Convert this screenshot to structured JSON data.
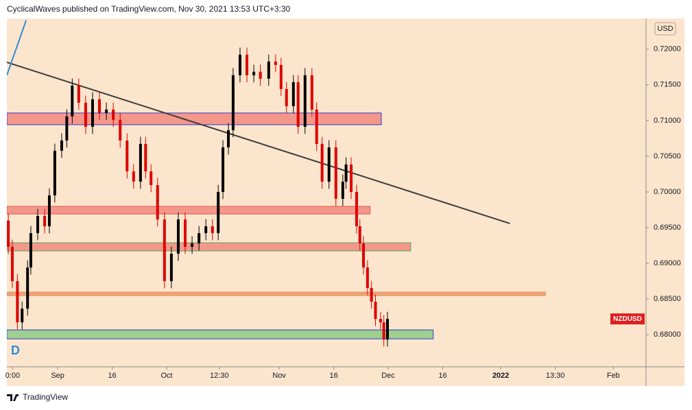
{
  "header": "CyclicalWaves published on TradingView.com, Nov 30, 2021 13:53 UTC+3:30",
  "footer": "TradingView",
  "chart_data": {
    "type": "candlestick",
    "currency": "USD",
    "symbol": "NZDUSD",
    "symbol_price": 0.68221,
    "interval_label": "D",
    "xlim": [
      -14,
      162
    ],
    "ylim": [
      0.6755,
      0.7243
    ],
    "xticks": [
      {
        "value": -12.4,
        "label": "0:00"
      },
      {
        "value": 0,
        "label": "Sep"
      },
      {
        "value": 15,
        "label": "16"
      },
      {
        "value": 30,
        "label": "Oct"
      },
      {
        "value": 44.5,
        "label": "12:30"
      },
      {
        "value": 61,
        "label": "Nov"
      },
      {
        "value": 76,
        "label": "16"
      },
      {
        "value": 91,
        "label": "Dec"
      },
      {
        "value": 106,
        "label": "16"
      },
      {
        "value": 122,
        "label": "2022"
      },
      {
        "value": 137,
        "label": "13:30"
      },
      {
        "value": 153,
        "label": "Feb"
      }
    ],
    "yticks": [
      {
        "value": 0.68,
        "label": "0.68000"
      },
      {
        "value": 0.685,
        "label": "0.68500"
      },
      {
        "value": 0.69,
        "label": "0.69000"
      },
      {
        "value": 0.695,
        "label": "0.69500"
      },
      {
        "value": 0.7,
        "label": "0.70000"
      },
      {
        "value": 0.705,
        "label": "0.70500"
      },
      {
        "value": 0.71,
        "label": "0.71000"
      },
      {
        "value": 0.715,
        "label": "0.71500"
      },
      {
        "value": 0.72,
        "label": "0.72000"
      }
    ],
    "up_color": "#000000",
    "down_color": "#e00000",
    "x": [
      -13.6,
      -12.5,
      -11.1,
      -9.8,
      -8.3,
      -7.4,
      -5.5,
      -3.6,
      -2.3,
      -0.8,
      1.1,
      2.5,
      4.0,
      5.8,
      7.7,
      9.6,
      11.5,
      13.4,
      15.3,
      17.2,
      19.1,
      20.9,
      22.8,
      24.2,
      25.7,
      27.5,
      29.4,
      31.3,
      33.2,
      35.1,
      37.0,
      38.9,
      40.8,
      42.6,
      44.2,
      45.5,
      47.0,
      48.3,
      50.2,
      52.1,
      54.0,
      55.8,
      58.1,
      60.0,
      61.5,
      63.0,
      64.9,
      66.2,
      68.1,
      70.0,
      71.3,
      72.8,
      74.7,
      76.6,
      78.5,
      79.4,
      80.8,
      82.3,
      83.2,
      84.2,
      85.3,
      86.4,
      87.5,
      88.9,
      89.8,
      90.8
    ],
    "open": [
      0.696,
      0.69231,
      0.6875,
      0.68173,
      0.68365,
      0.68942,
      0.69423,
      0.69663,
      0.69519,
      0.69952,
      0.70577,
      0.70721,
      0.71058,
      0.7149,
      0.7125,
      0.70913,
      0.71298,
      0.71106,
      0.71154,
      0.7101,
      0.70721,
      0.70288,
      0.70144,
      0.70673,
      0.70288,
      0.70096,
      0.69615,
      0.6875,
      0.69135,
      0.69615,
      0.69231,
      0.69279,
      0.69423,
      0.69519,
      0.69423,
      0.7,
      0.70625,
      0.70865,
      0.71635,
      0.71923,
      0.71635,
      0.71683,
      0.71587,
      0.71827,
      0.71779,
      0.71442,
      0.71202,
      0.71538,
      0.70913,
      0.71635,
      0.71154,
      0.70673,
      0.70144,
      0.70625,
      0.69904,
      0.70144,
      0.70385,
      0.7,
      0.69519,
      0.69279,
      0.68942,
      0.68654,
      0.68462,
      0.68221,
      0.68173,
      0.67933
    ],
    "high": [
      0.697,
      0.69331,
      0.6885,
      0.68465,
      0.69042,
      0.69523,
      0.69763,
      0.69763,
      0.70052,
      0.70677,
      0.70821,
      0.71158,
      0.7159,
      0.7159,
      0.7135,
      0.71398,
      0.71398,
      0.71254,
      0.71254,
      0.7111,
      0.70821,
      0.70388,
      0.70773,
      0.70773,
      0.70388,
      0.70196,
      0.69715,
      0.69235,
      0.69715,
      0.69715,
      0.69379,
      0.69523,
      0.69619,
      0.69619,
      0.701,
      0.70725,
      0.70965,
      0.71735,
      0.72023,
      0.72023,
      0.71783,
      0.71783,
      0.71927,
      0.71927,
      0.71879,
      0.71542,
      0.71638,
      0.71638,
      0.71735,
      0.71735,
      0.71254,
      0.70773,
      0.70725,
      0.70725,
      0.70244,
      0.70485,
      0.70485,
      0.701,
      0.69619,
      0.69379,
      0.69042,
      0.68754,
      0.68562,
      0.68321,
      0.68273,
      0.68321
    ],
    "low": [
      0.69131,
      0.6865,
      0.68073,
      0.68073,
      0.68265,
      0.68842,
      0.69323,
      0.69419,
      0.69419,
      0.69852,
      0.70477,
      0.70621,
      0.70958,
      0.7115,
      0.70813,
      0.70813,
      0.71006,
      0.71006,
      0.7091,
      0.70621,
      0.70188,
      0.70044,
      0.70044,
      0.70188,
      0.69996,
      0.69515,
      0.6865,
      0.6865,
      0.69035,
      0.69131,
      0.69131,
      0.69179,
      0.69323,
      0.69323,
      0.69323,
      0.699,
      0.70525,
      0.70765,
      0.71535,
      0.71535,
      0.71535,
      0.71487,
      0.71487,
      0.71679,
      0.71342,
      0.71102,
      0.71102,
      0.70813,
      0.70813,
      0.71054,
      0.70573,
      0.70044,
      0.70044,
      0.69804,
      0.69804,
      0.70044,
      0.699,
      0.69419,
      0.69179,
      0.68842,
      0.68554,
      0.68362,
      0.68121,
      0.68073,
      0.67833,
      0.67833
    ],
    "close": [
      0.69231,
      0.6875,
      0.68173,
      0.68365,
      0.68942,
      0.69423,
      0.69663,
      0.69519,
      0.69952,
      0.70577,
      0.70721,
      0.71058,
      0.7149,
      0.7125,
      0.70913,
      0.71298,
      0.71106,
      0.71154,
      0.7101,
      0.70721,
      0.70288,
      0.70144,
      0.70673,
      0.70288,
      0.70096,
      0.69615,
      0.6875,
      0.69135,
      0.69615,
      0.69231,
      0.69279,
      0.69423,
      0.69519,
      0.69423,
      0.7,
      0.70625,
      0.70865,
      0.71635,
      0.71923,
      0.71635,
      0.71683,
      0.71587,
      0.71827,
      0.71779,
      0.71442,
      0.71202,
      0.71538,
      0.70913,
      0.71635,
      0.71154,
      0.70673,
      0.70144,
      0.70625,
      0.69904,
      0.70144,
      0.70385,
      0.7,
      0.69519,
      0.69279,
      0.68942,
      0.68654,
      0.68462,
      0.68221,
      0.68173,
      0.67933,
      0.68221
    ],
    "zones": [
      {
        "x": [
          -14,
          89.1
        ],
        "y": [
          0.70942,
          0.71106
        ],
        "fill": "#f4978b",
        "stroke": "#2a3cc8"
      },
      {
        "x": [
          -14,
          86.0
        ],
        "y": [
          0.69692,
          0.69798
        ],
        "fill": "#f4978b",
        "stroke": "#e0524a"
      },
      {
        "x": [
          -14,
          97.2
        ],
        "y": [
          0.69173,
          0.69288
        ],
        "fill": "#f4978b",
        "stroke": "#4caf50"
      },
      {
        "x": [
          -14,
          134.3
        ],
        "y": [
          0.68548,
          0.68596
        ],
        "fill": "#f4a27a",
        "stroke": "#d4915c"
      },
      {
        "x": [
          -14,
          103.4
        ],
        "y": [
          0.67942,
          0.68067
        ],
        "fill": "#9fcf8f",
        "stroke": "#2a3cc8"
      }
    ],
    "lines": [
      {
        "x": [
          -14,
          124.5
        ],
        "y": [
          0.71817,
          0.69558
        ],
        "color": "#3c3c3c"
      },
      {
        "x": [
          -14,
          -8.7
        ],
        "y": [
          0.71635,
          0.72404
        ],
        "color": "#2f8bd8"
      }
    ]
  }
}
